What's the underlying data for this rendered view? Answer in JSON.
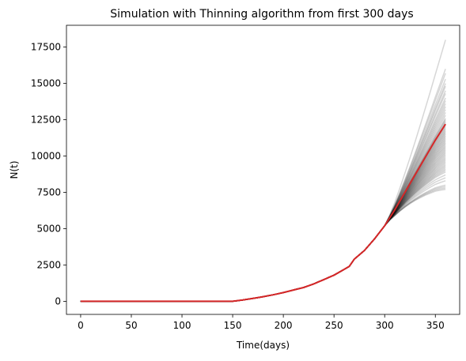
{
  "chart_data": {
    "type": "line",
    "title": "Simulation with Thinning algorithm from first 300 days",
    "xlabel": "Time(days)",
    "ylabel": "N(t)",
    "xlim": [
      -14,
      374
    ],
    "ylim": [
      -900,
      19000
    ],
    "xticks": [
      0,
      50,
      100,
      150,
      200,
      250,
      300,
      350
    ],
    "yticks": [
      0,
      2500,
      5000,
      7500,
      10000,
      12500,
      15000,
      17500
    ],
    "grid": false,
    "legend": "none",
    "colors": {
      "simulations": "#000000",
      "observed": "#d62728",
      "axes": "#000000",
      "background": "#ffffff"
    },
    "observed_series": {
      "x": [
        0,
        50,
        100,
        150,
        160,
        170,
        180,
        190,
        200,
        210,
        220,
        230,
        240,
        250,
        260,
        265,
        270,
        280,
        290,
        300,
        310,
        320,
        330,
        340,
        350,
        360
      ],
      "y": [
        0,
        0,
        0,
        0,
        90,
        200,
        320,
        450,
        600,
        780,
        950,
        1200,
        1500,
        1800,
        2200,
        2400,
        2900,
        3500,
        4300,
        5200,
        6300,
        7500,
        8700,
        9900,
        11100,
        12200
      ]
    },
    "simulated_series_final_values": [
      18000,
      16000,
      15700,
      15300,
      15000,
      14800,
      14500,
      14300,
      14000,
      13800,
      13600,
      13400,
      13200,
      13000,
      12800,
      12600,
      12500,
      12400,
      12300,
      12200,
      12100,
      12000,
      11900,
      11800,
      11700,
      11600,
      11500,
      11400,
      11300,
      11200,
      11100,
      11000,
      10900,
      10800,
      10700,
      10600,
      10500,
      10400,
      10300,
      10200,
      10100,
      10000,
      9900,
      9800,
      9700,
      9600,
      9500,
      9400,
      9300,
      9200,
      9100,
      9000,
      8900,
      8700,
      8500,
      8300,
      8000,
      7900,
      7800,
      7700
    ]
  }
}
